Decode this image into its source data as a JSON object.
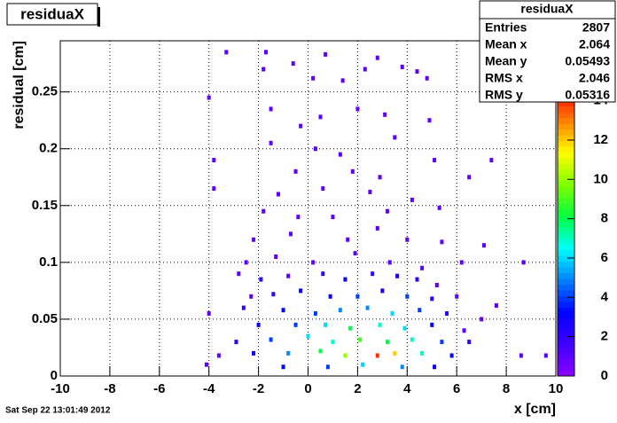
{
  "chart_data": {
    "type": "heatmap2d",
    "title": "residuaX",
    "x_label": "x [cm]",
    "y_label": "residual [cm]",
    "timestamp": "Sat Sep 22 13:01:49 2012",
    "xlim": [
      -10,
      10
    ],
    "xticks": [
      -10,
      -8,
      -6,
      -4,
      -2,
      0,
      2,
      4,
      6,
      8,
      10
    ],
    "ylim": [
      0,
      0.295
    ],
    "yticks": [
      0,
      0.05,
      0.1,
      0.15,
      0.2,
      0.25
    ],
    "zlim": [
      0,
      14.6
    ],
    "zticks": [
      0,
      2,
      4,
      6,
      8,
      10,
      12,
      14
    ],
    "grid": true,
    "palette": [
      "#8c00ff",
      "#4000ff",
      "#0000ff",
      "#0080ff",
      "#00ffff",
      "#00ff40",
      "#80ff00",
      "#ffff00",
      "#ff8000",
      "#ff0000"
    ],
    "stats": {
      "title": "residuaX",
      "labels": [
        "Entries",
        "Mean x",
        "Mean y",
        "RMS x",
        "RMS y"
      ],
      "values": [
        2807,
        2.064,
        0.05493,
        2.046,
        0.05316
      ]
    },
    "cells": {
      "x": [
        -3.3,
        -1.7,
        0.7,
        2.8,
        -1.8,
        -0.6,
        2.3,
        3.8,
        4.4,
        0.2,
        1.4,
        4.8,
        -4,
        -1.5,
        -0.3,
        0.5,
        2.0,
        3.1,
        4.9,
        -1.5,
        0.3,
        1.3,
        3.5,
        5.1,
        -3.8,
        -0.5,
        1.8,
        2.9,
        6.5,
        7.4,
        -3.8,
        -1.2,
        0.6,
        2.5,
        4.2,
        -1.8,
        -0.4,
        1.0,
        3.2,
        5.3,
        -2.2,
        -0.7,
        1.6,
        2.8,
        4.0,
        5.4,
        7.1,
        -2.5,
        -1.3,
        0.2,
        1.9,
        3.3,
        4.6,
        6.2,
        8.7,
        -2.8,
        -1.9,
        -0.8,
        0.6,
        1.5,
        2.6,
        3.6,
        4.4,
        5.2,
        -2.3,
        -1.4,
        -0.3,
        0.9,
        2.0,
        3.0,
        4.0,
        5.0,
        6.0,
        -4,
        -2.6,
        -1.0,
        0.3,
        1.3,
        2.4,
        3.4,
        4.5,
        5.6,
        7.0,
        -2.0,
        -0.5,
        0.7,
        1.7,
        2.9,
        3.9,
        5.0,
        6.3,
        -2.9,
        -1.5,
        0,
        1.0,
        2.1,
        3.2,
        4.2,
        5.4,
        6.5,
        -3.6,
        -2.2,
        -0.8,
        0.5,
        1.5,
        2.8,
        3.5,
        4.6,
        5.8,
        -4.1,
        -1.0,
        0.8,
        2.2,
        3.8,
        5.1,
        8.6,
        9.6,
        7.6
      ],
      "y": [
        0.285,
        0.285,
        0.283,
        0.28,
        0.27,
        0.275,
        0.27,
        0.272,
        0.268,
        0.262,
        0.26,
        0.262,
        0.245,
        0.235,
        0.22,
        0.228,
        0.235,
        0.23,
        0.225,
        0.205,
        0.2,
        0.195,
        0.21,
        0.19,
        0.19,
        0.18,
        0.18,
        0.175,
        0.175,
        0.19,
        0.165,
        0.16,
        0.165,
        0.162,
        0.155,
        0.145,
        0.14,
        0.14,
        0.145,
        0.148,
        0.12,
        0.125,
        0.12,
        0.13,
        0.12,
        0.118,
        0.115,
        0.1,
        0.105,
        0.1,
        0.108,
        0.1,
        0.095,
        0.1,
        0.1,
        0.09,
        0.085,
        0.088,
        0.09,
        0.085,
        0.09,
        0.088,
        0.085,
        0.08,
        0.07,
        0.072,
        0.075,
        0.07,
        0.07,
        0.075,
        0.07,
        0.068,
        0.07,
        0.055,
        0.06,
        0.058,
        0.055,
        0.058,
        0.06,
        0.055,
        0.058,
        0.055,
        0.05,
        0.045,
        0.045,
        0.045,
        0.042,
        0.045,
        0.042,
        0.045,
        0.04,
        0.03,
        0.032,
        0.035,
        0.03,
        0.032,
        0.03,
        0.032,
        0.03,
        0.03,
        0.018,
        0.02,
        0.02,
        0.022,
        0.018,
        0.018,
        0.02,
        0.02,
        0.018,
        0.01,
        0.008,
        0.008,
        0.01,
        0.008,
        0.008,
        0.018,
        0.018,
        0.062
      ],
      "values": [
        1,
        1,
        1,
        1,
        1,
        1,
        1,
        1,
        1,
        1,
        1,
        1,
        1,
        1,
        1,
        1,
        1,
        1,
        1,
        1,
        1,
        1,
        1,
        1,
        1,
        1,
        1,
        1,
        1,
        1,
        1,
        1,
        1,
        1,
        1,
        1,
        1,
        1,
        1,
        1,
        1,
        1,
        1,
        1,
        1,
        1,
        1,
        1,
        1,
        1,
        1,
        1,
        1,
        1,
        1,
        1,
        2,
        1,
        2,
        3,
        2,
        3,
        2,
        1,
        1,
        2,
        3,
        3,
        4,
        3,
        4,
        2,
        1,
        1,
        2,
        3,
        4,
        5,
        5,
        6,
        4,
        2,
        1,
        3,
        4,
        6,
        8,
        7,
        6,
        3,
        1,
        2,
        4,
        6,
        7,
        9,
        8,
        7,
        4,
        2,
        1,
        3,
        5,
        8,
        10,
        14,
        12,
        7,
        3,
        1,
        3,
        4,
        6,
        5,
        3,
        1,
        1,
        1
      ]
    }
  }
}
